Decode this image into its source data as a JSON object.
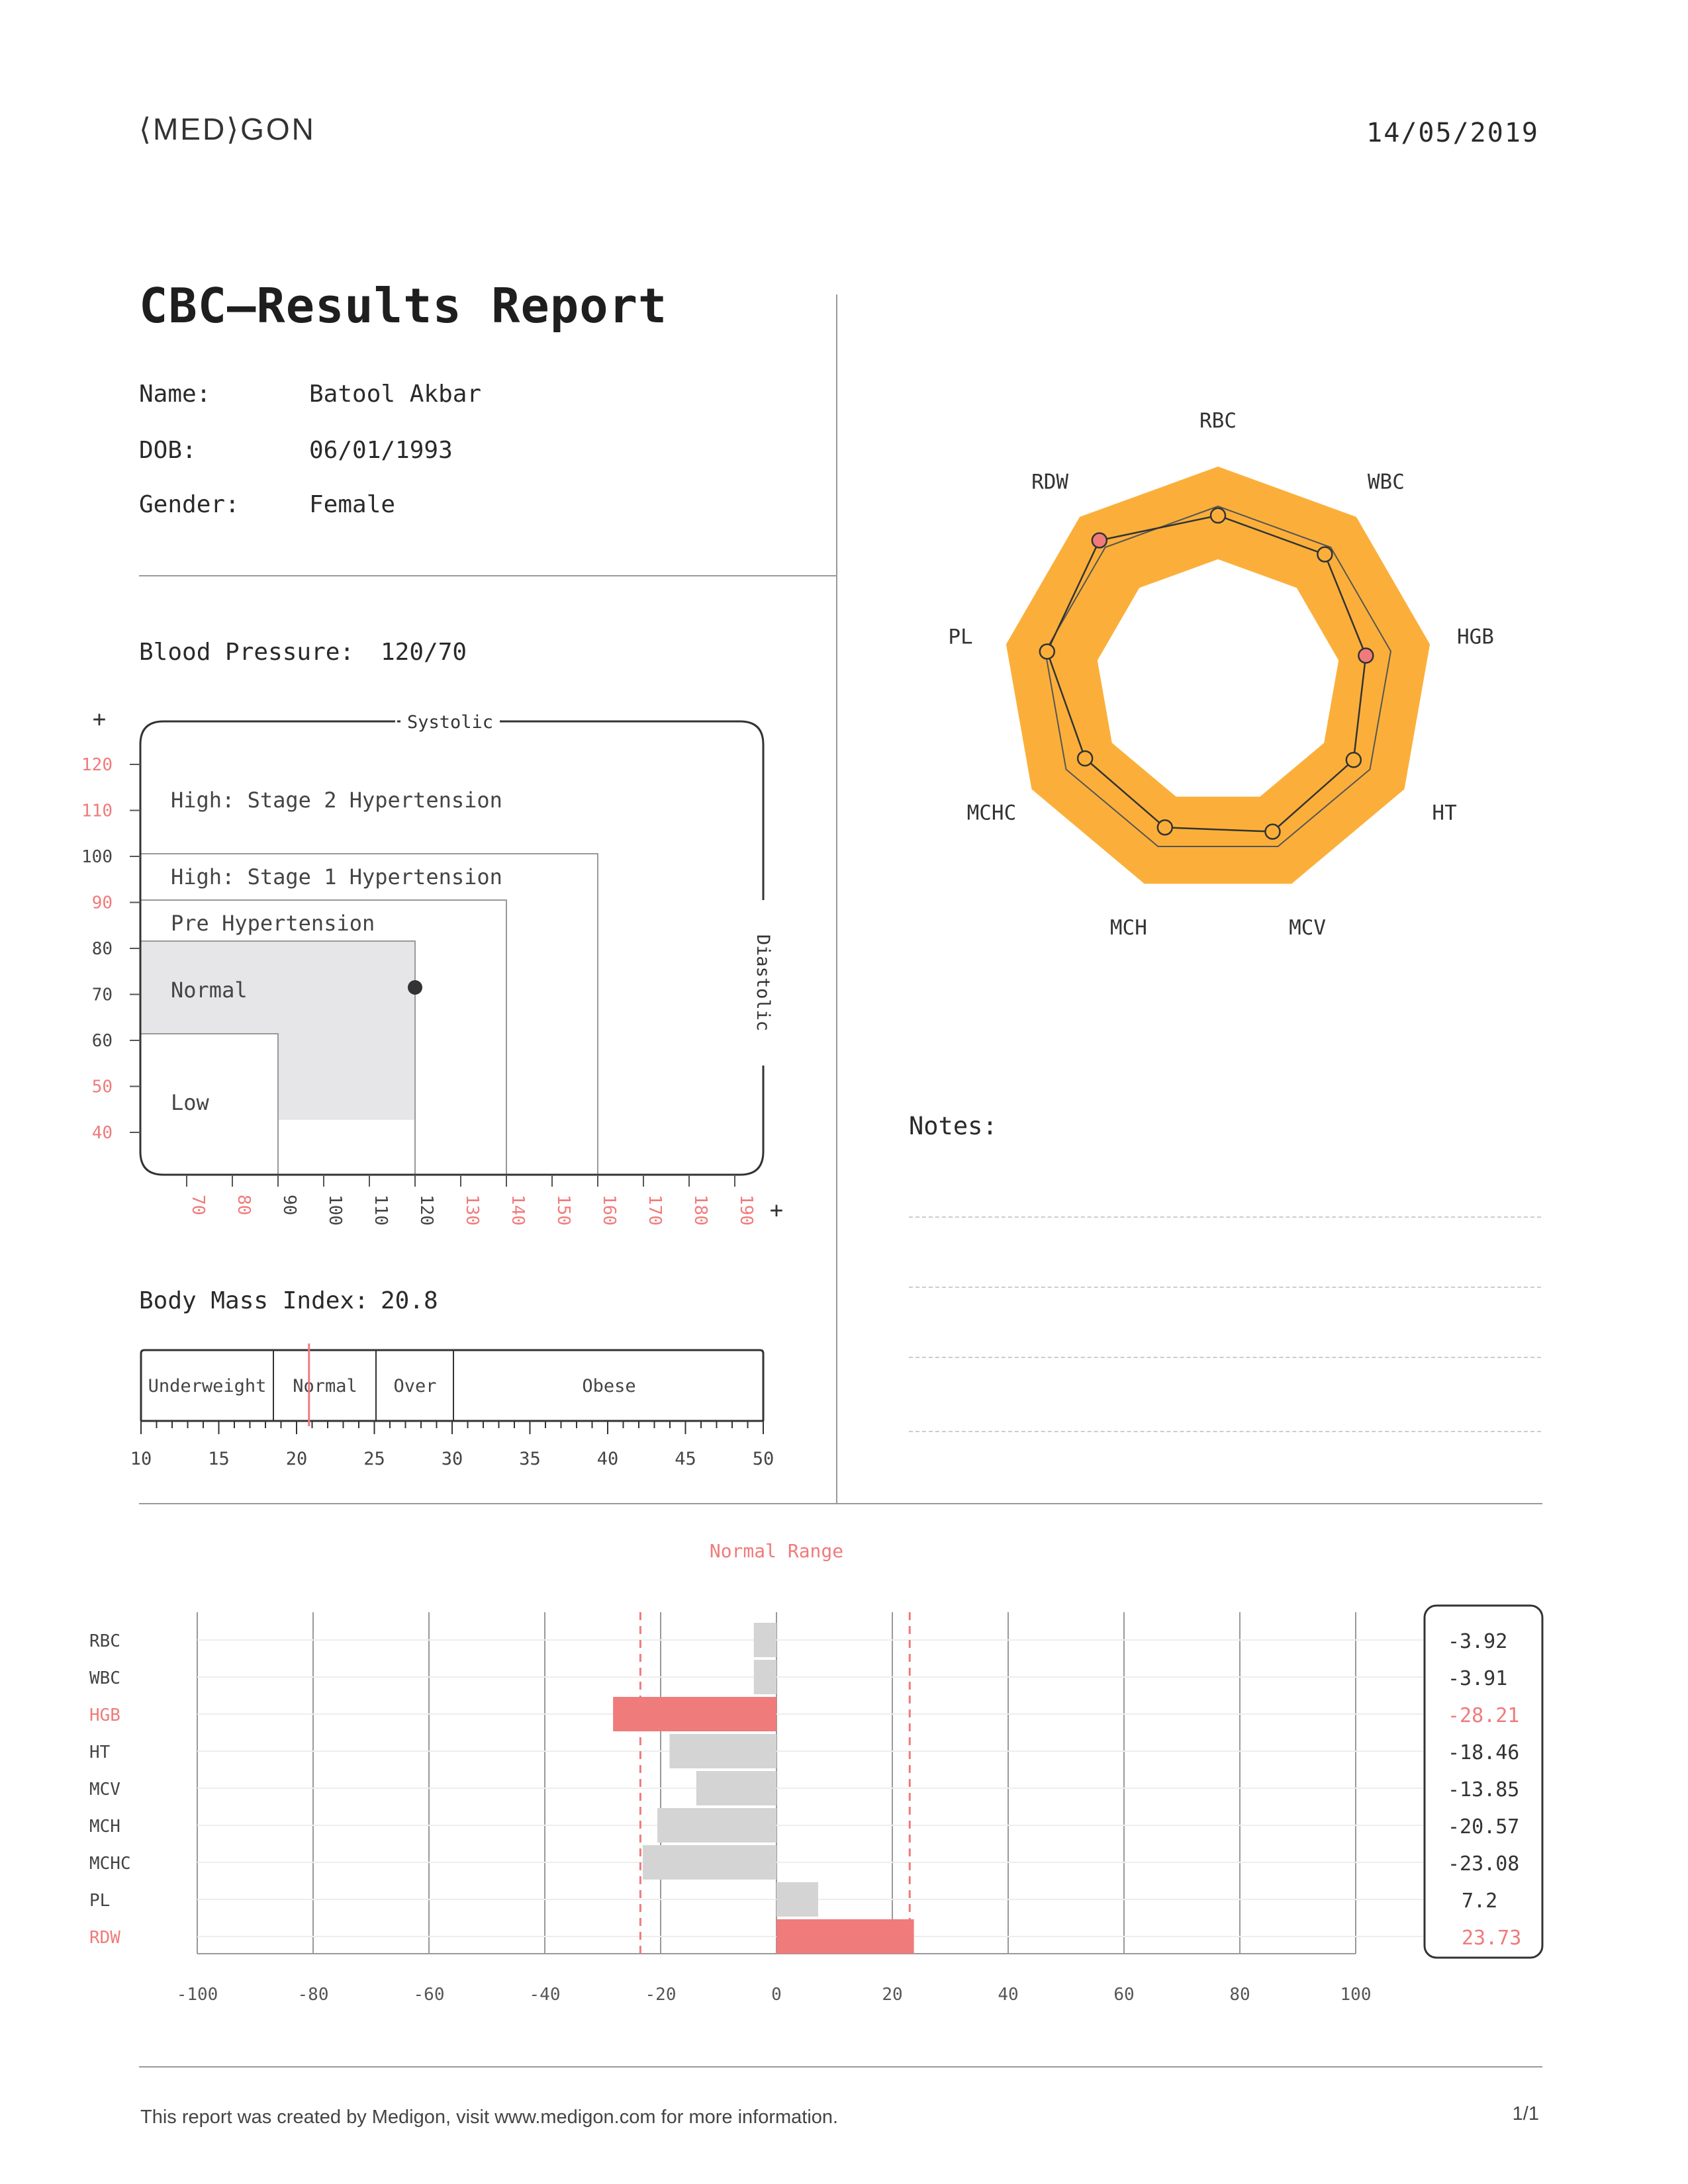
{
  "header": {
    "logo": "⟨MED⟩GON",
    "date": "14/05/2019"
  },
  "report": {
    "title": "CBC—Results Report",
    "fields": [
      {
        "label": "Name:",
        "value": "Batool Akbar"
      },
      {
        "label": "DOB:",
        "value": "06/01/1993"
      },
      {
        "label": "Gender:",
        "value": "Female"
      }
    ]
  },
  "blood_pressure": {
    "label": "Blood Pressure:",
    "value": "120/70",
    "y_axis_label": "Systolic",
    "x_axis_label": "Diastolic",
    "plus": "+",
    "zones": [
      "High: Stage 2 Hypertension",
      "High: Stage 1 Hypertension",
      "Pre Hypertension",
      "Normal",
      "Low"
    ],
    "y_ticks": [
      "120",
      "110",
      "100",
      "90",
      "80",
      "70",
      "60",
      "50",
      "40"
    ],
    "x_ticks": [
      "70",
      "80",
      "90",
      "100",
      "110",
      "120",
      "130",
      "140",
      "150",
      "160",
      "170",
      "180",
      "190"
    ],
    "accent": "#f07b7b"
  },
  "bmi": {
    "label": "Body Mass Index:",
    "value": "20.8",
    "categories": [
      "Underweight",
      "Normal",
      "Over",
      "Obese"
    ],
    "ticks": [
      "10",
      "15",
      "20",
      "25",
      "30",
      "35",
      "40",
      "45",
      "50"
    ]
  },
  "radar": {
    "axes": [
      "RBC",
      "WBC",
      "HGB",
      "HT",
      "MCV",
      "MCH",
      "MCHC",
      "PL",
      "RDW"
    ],
    "fill": "#fbaf3a",
    "alert": "#f07b7b"
  },
  "notes": {
    "label": "Notes:"
  },
  "chart_data": {
    "type": "bar",
    "title": "Normal Range",
    "categories": [
      "RBC",
      "WBC",
      "HGB",
      "HT",
      "MCV",
      "MCH",
      "MCHC",
      "PL",
      "RDW"
    ],
    "values": [
      -3.92,
      -3.91,
      -28.21,
      -18.46,
      -13.85,
      -20.57,
      -23.08,
      7.2,
      23.73
    ],
    "value_labels": [
      "-3.92",
      "-3.91",
      "-28.21",
      "-18.46",
      "-13.85",
      "-20.57",
      "-23.08",
      "7.2",
      "23.73"
    ],
    "highlighted": [
      "HGB",
      "RDW"
    ],
    "normal_range": [
      -23.5,
      23
    ],
    "xlim": [
      -100,
      100
    ],
    "xticks": [
      "-100",
      "-80",
      "-60",
      "-40",
      "-20",
      "0",
      "20",
      "40",
      "60",
      "80",
      "100"
    ],
    "bar_color": "#d4d4d4",
    "highlight_color": "#f07b7b",
    "orientation": "horizontal"
  },
  "footer": {
    "text": "This report was created by Medigon, visit www.medigon.com for more information.",
    "page": "1/1"
  }
}
